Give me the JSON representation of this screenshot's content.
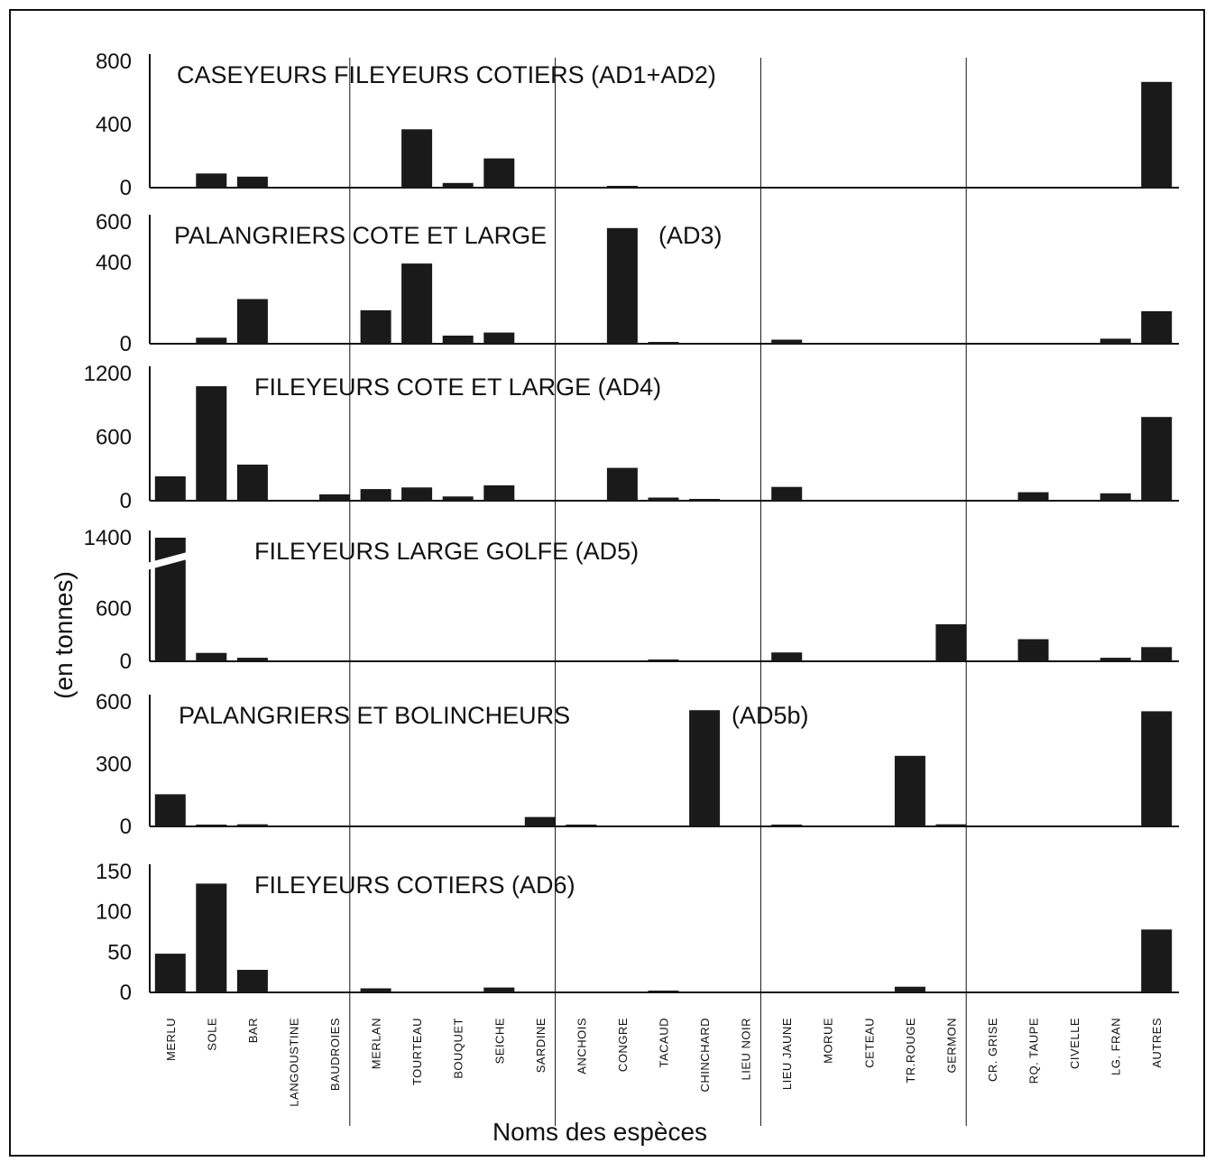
{
  "chart_data": {
    "type": "bar",
    "xlabel": "Noms des espèces",
    "ylabel": "(en tonnes)",
    "categories": [
      "MERLU",
      "SOLE",
      "BAR",
      "LANGOUSTINE",
      "BAUDROIES",
      "MERLAN",
      "TOURTEAU",
      "BOUQUET",
      "SEICHE",
      "SARDINE",
      "ANCHOIS",
      "CONGRE",
      "TACAUD",
      "CHINCHARD",
      "LIEU NOIR",
      "LIEU JAUNE",
      "MORUE",
      "CETEAU",
      "TR.ROUGE",
      "GERMON",
      "CR. GRISE",
      "RQ. TAUPE",
      "CIVELLE",
      "LG. FRAN",
      "AUTRES"
    ],
    "panels": [
      {
        "title": "CASEYEURS FILEYEURS COTIERS (AD1+AD2)",
        "yticks": [
          "800",
          "400",
          "0"
        ],
        "ylim": [
          0,
          800
        ],
        "values": [
          0,
          90,
          70,
          0,
          0,
          0,
          370,
          30,
          185,
          0,
          0,
          10,
          0,
          0,
          0,
          0,
          0,
          0,
          0,
          0,
          0,
          0,
          0,
          0,
          670
        ]
      },
      {
        "title": "PALANGRIERS COTE ET LARGE",
        "title_suffix": "(AD3)",
        "yticks": [
          "600",
          "400",
          "0"
        ],
        "ylim": [
          0,
          600
        ],
        "values": [
          0,
          30,
          220,
          0,
          0,
          165,
          395,
          40,
          55,
          0,
          0,
          570,
          5,
          0,
          0,
          20,
          0,
          0,
          0,
          0,
          0,
          0,
          0,
          25,
          160
        ]
      },
      {
        "title": "FILEYEURS COTE ET LARGE (AD4)",
        "yticks": [
          "1200",
          "600",
          "0"
        ],
        "ylim": [
          0,
          1200
        ],
        "values": [
          230,
          1080,
          340,
          0,
          60,
          110,
          125,
          40,
          145,
          0,
          0,
          310,
          30,
          10,
          0,
          130,
          0,
          0,
          0,
          0,
          0,
          80,
          0,
          70,
          790
        ]
      },
      {
        "title": "FILEYEURS LARGE GOLFE (AD5)",
        "yticks": [
          "1400",
          "600",
          "0"
        ],
        "ylim": [
          0,
          1400
        ],
        "break_on_first": true,
        "values": [
          1400,
          95,
          40,
          0,
          0,
          0,
          0,
          0,
          0,
          0,
          0,
          0,
          15,
          0,
          0,
          100,
          0,
          0,
          0,
          420,
          0,
          250,
          0,
          40,
          160
        ]
      },
      {
        "title": "PALANGRIERS ET BOLINCHEURS",
        "title_suffix": "(AD5b)",
        "yticks": [
          "600",
          "300",
          "0"
        ],
        "ylim": [
          0,
          600
        ],
        "values": [
          155,
          5,
          10,
          0,
          0,
          0,
          0,
          0,
          0,
          45,
          5,
          0,
          0,
          560,
          0,
          5,
          0,
          0,
          340,
          10,
          0,
          0,
          0,
          0,
          555
        ]
      },
      {
        "title": "FILEYEURS COTIERS (AD6)",
        "yticks": [
          "150",
          "100",
          "50",
          "0"
        ],
        "ylim": [
          0,
          150
        ],
        "values": [
          48,
          135,
          28,
          0,
          0,
          5,
          0,
          0,
          6,
          0,
          0,
          0,
          1,
          0,
          0,
          0,
          0,
          0,
          7,
          0,
          0,
          0,
          0,
          0,
          78
        ]
      }
    ]
  },
  "colors": {
    "bar": "#1a1a1a",
    "axis": "#111111"
  }
}
